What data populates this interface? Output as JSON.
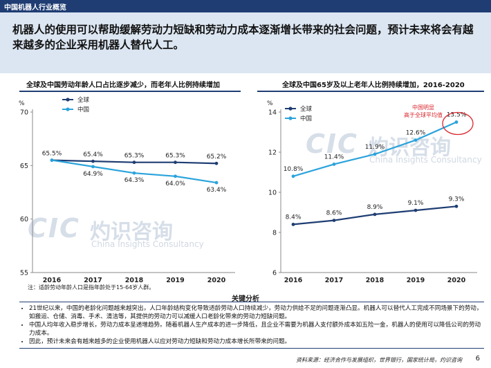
{
  "header": {
    "section": "中国机器人行业概览"
  },
  "headline": "机器人的使用可以帮助缓解劳动力短缺和劳动力成本逐渐增长带来的社会问题，预计未来将会有越来越多的企业采用机器人替代人工。",
  "watermark": {
    "logo_text": "CIC",
    "cn": "灼识咨询",
    "en": "China Insights Consultancy"
  },
  "chart_data": [
    {
      "type": "line",
      "title": "全球及中国劳动年龄人口占比逐步减少，而老年人比例持续增加",
      "ylabel": "%",
      "x": [
        "2016",
        "2017",
        "2018",
        "2019",
        "2020"
      ],
      "ylim": [
        55,
        70
      ],
      "yticks": [
        "70",
        "65",
        "60",
        "55"
      ],
      "series": [
        {
          "name": "全球",
          "color": "#1f3d73",
          "values": [
            65.5,
            65.4,
            65.3,
            65.3,
            65.2
          ],
          "labels": [
            "65.5%",
            "65.4%",
            "65.3%",
            "65.3%",
            "65.2%"
          ]
        },
        {
          "name": "中国",
          "color": "#2aa3dc",
          "values": [
            65.5,
            64.9,
            64.3,
            64.0,
            63.4
          ],
          "labels": [
            "",
            "64.9%",
            "64.3%",
            "64.0%",
            "63.4%"
          ]
        }
      ],
      "note": "注：适龄劳动年龄人口是指年龄处于15-64岁人群。"
    },
    {
      "type": "line",
      "title": "全球及中国65岁及以上老年人比例持续增加，2016-2020",
      "ylabel": "%",
      "x": [
        "2016",
        "2017",
        "2018",
        "2019",
        "2020"
      ],
      "ylim": [
        6,
        14
      ],
      "yticks": [
        "14",
        "12",
        "10",
        "8",
        "6"
      ],
      "series": [
        {
          "name": "全球",
          "color": "#1f3d73",
          "values": [
            8.4,
            8.6,
            8.9,
            9.1,
            9.3
          ],
          "labels": [
            "8.4%",
            "8.6%",
            "8.9%",
            "9.1%",
            "9.3%"
          ]
        },
        {
          "name": "中国",
          "color": "#2aa3dc",
          "values": [
            10.8,
            11.4,
            11.9,
            12.6,
            13.5
          ],
          "labels": [
            "10.8%",
            "11.4%",
            "11.9%",
            "12.6%",
            "13.5%"
          ]
        }
      ],
      "annotation": {
        "line1": "中国明显",
        "line2": "高于全球平均值",
        "color": "#d9262c"
      }
    }
  ],
  "analysis": {
    "title": "关键分析",
    "bullets": [
      "21世纪以来，中国的老龄化问题越来越突出，人口年龄结构变化导致适龄劳动人口持续减少，劳动力供给不足的问题逐渐凸显。机器人可以替代人工完成不同场景下的劳动，如搬运、仓储、消毒、手术、清洁等，其提供的劳动力可以减缓人口老龄化带来的劳动力短缺问题。",
      "中国人均年收入稳步增长，劳动力成本呈递增趋势。随着机器人生产成本的进一步降低，且企业不需要为机器人支付额外成本如五险一金，机器人的使用可以降低公司的劳动力成本。",
      "因此，预计未来会有越来越多的企业使用机器人以应对劳动力短缺和劳动力成本增长所带来的问题。"
    ]
  },
  "footer": {
    "source": "资料来源：经济合作与发展组织，世界银行，国家统计局，灼识咨询",
    "page": "6"
  }
}
